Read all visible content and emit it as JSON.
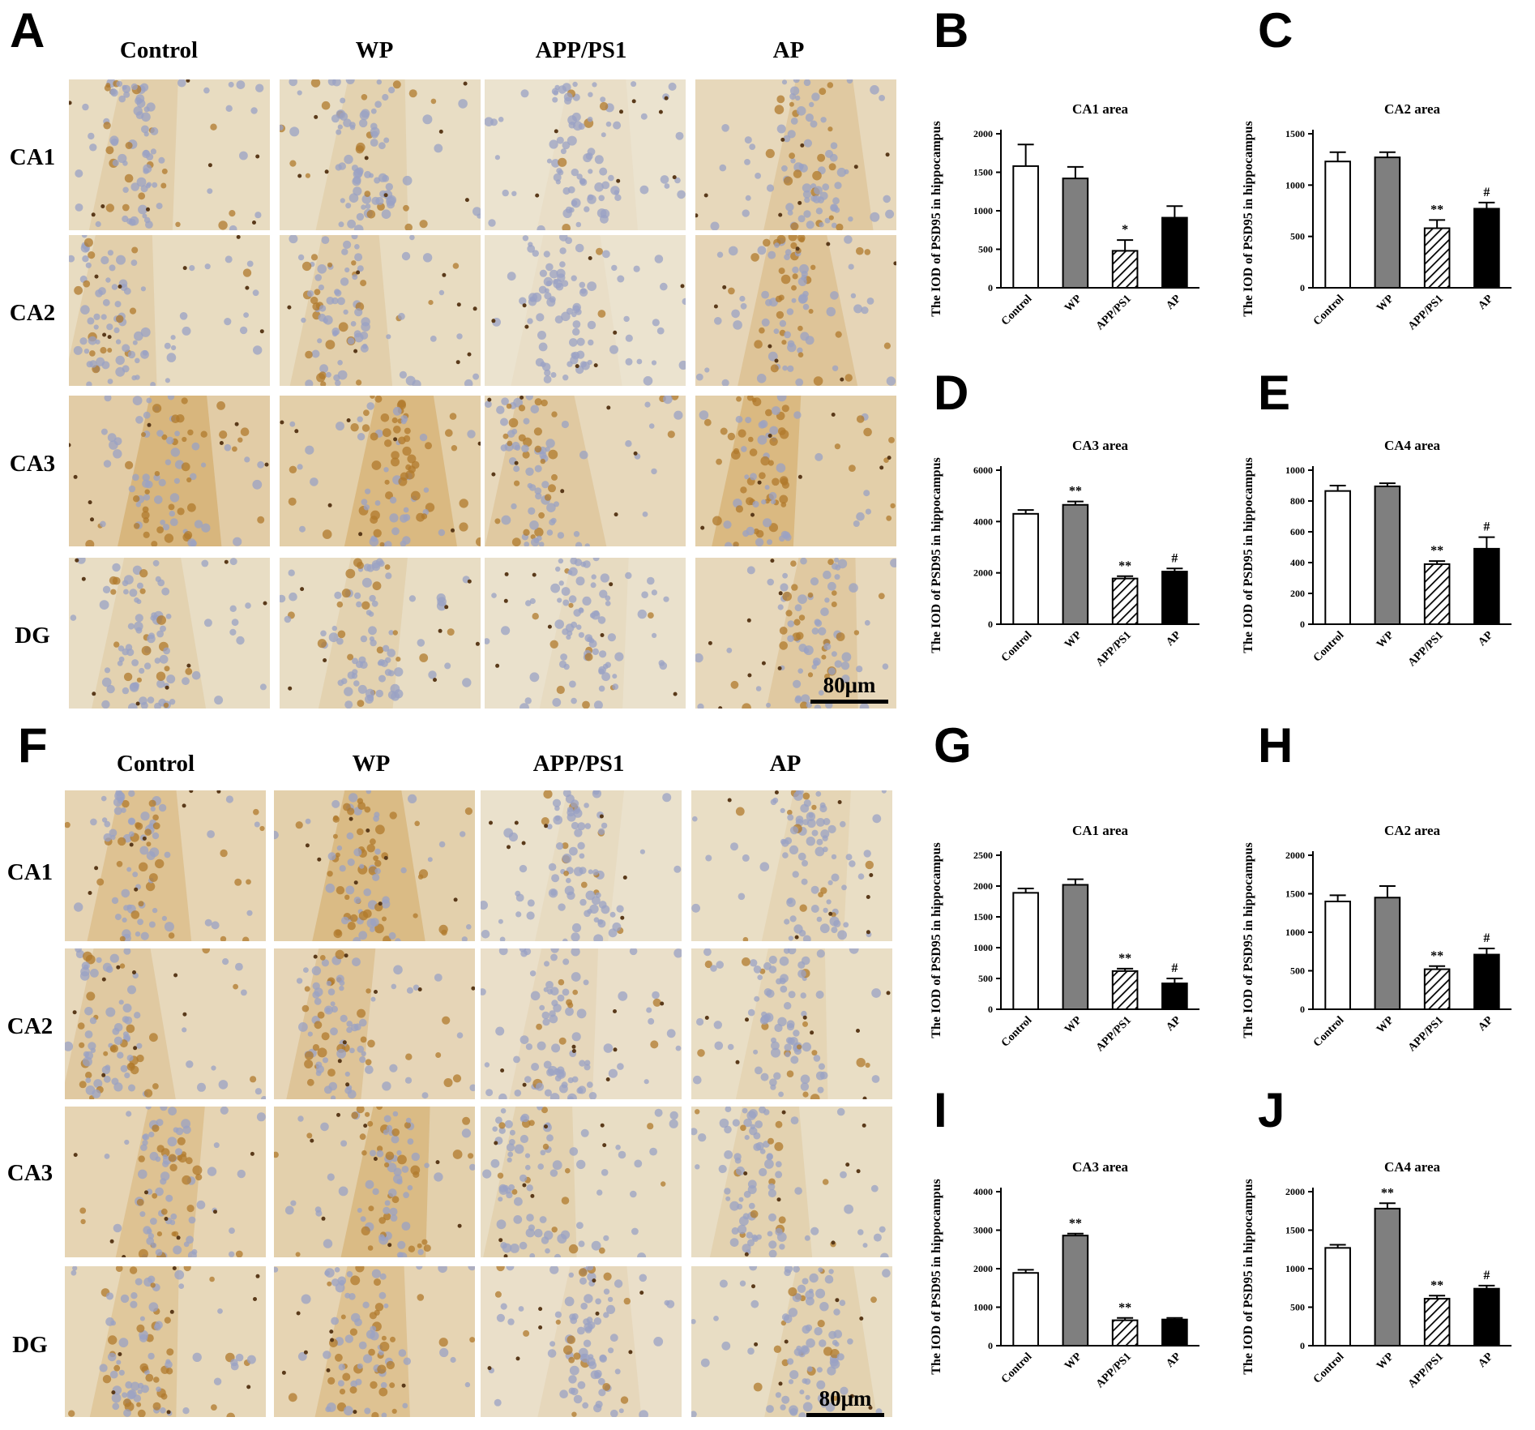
{
  "figure": {
    "panel_letters": [
      "A",
      "B",
      "C",
      "D",
      "E",
      "F",
      "G",
      "H",
      "I",
      "J"
    ],
    "micrograph_panels": [
      {
        "letter": "A",
        "columns": [
          "Control",
          "WP",
          "APP/PS1",
          "AP"
        ],
        "rows": [
          "CA1",
          "CA2",
          "CA3",
          "DG"
        ],
        "scale_bar": "80μm",
        "stain_intensity": [
          [
            0.35,
            0.3,
            0.1,
            0.45
          ],
          [
            0.35,
            0.35,
            0.1,
            0.55
          ],
          [
            0.85,
            0.8,
            0.45,
            0.8
          ],
          [
            0.3,
            0.3,
            0.15,
            0.45
          ]
        ]
      },
      {
        "letter": "F",
        "columns": [
          "Control",
          "WP",
          "APP/PS1",
          "AP"
        ],
        "rows": [
          "CA1",
          "CA2",
          "CA3",
          "DG"
        ],
        "scale_bar": "80μm",
        "stain_intensity": [
          [
            0.6,
            0.75,
            0.15,
            0.25
          ],
          [
            0.45,
            0.55,
            0.2,
            0.25
          ],
          [
            0.6,
            0.75,
            0.3,
            0.3
          ],
          [
            0.5,
            0.6,
            0.2,
            0.3
          ]
        ]
      }
    ]
  },
  "chart_data": [
    {
      "panel": "B",
      "type": "bar",
      "title": "CA1 area",
      "ylabel": "The IOD of PSD95  in hippocampus",
      "categories": [
        "Control",
        "WP",
        "APP/PS1",
        "AP"
      ],
      "values": [
        1580,
        1420,
        480,
        910
      ],
      "errors": [
        280,
        150,
        140,
        150
      ],
      "ylim": [
        0,
        2000
      ],
      "yticks": [
        0,
        500,
        1000,
        1500,
        2000
      ],
      "annotations": [
        "",
        "",
        "*",
        ""
      ]
    },
    {
      "panel": "C",
      "type": "bar",
      "title": "CA2 area",
      "ylabel": "The IOD of PSD95  in hippocampus",
      "categories": [
        "Control",
        "WP",
        "APP/PS1",
        "AP"
      ],
      "values": [
        1230,
        1270,
        580,
        770
      ],
      "errors": [
        90,
        50,
        80,
        60
      ],
      "ylim": [
        0,
        1500
      ],
      "yticks": [
        0,
        500,
        1000,
        1500
      ],
      "annotations": [
        "",
        "",
        "**",
        "#"
      ]
    },
    {
      "panel": "D",
      "type": "bar",
      "title": "CA3 area",
      "ylabel": "The IOD of PSD95 in hippocampus",
      "categories": [
        "Control",
        "WP",
        "APP/PS1",
        "AP"
      ],
      "values": [
        4300,
        4650,
        1780,
        2050
      ],
      "errors": [
        150,
        130,
        90,
        120
      ],
      "ylim": [
        0,
        6000
      ],
      "yticks": [
        0,
        2000,
        4000,
        6000
      ],
      "annotations": [
        "",
        "**",
        "**",
        "#"
      ]
    },
    {
      "panel": "E",
      "type": "bar",
      "title": "CA4 area",
      "ylabel": "The IOD of PSD95 in hippocampus",
      "categories": [
        "Control",
        "WP",
        "APP/PS1",
        "AP"
      ],
      "values": [
        865,
        895,
        390,
        490
      ],
      "errors": [
        35,
        20,
        20,
        75
      ],
      "ylim": [
        0,
        1000
      ],
      "yticks": [
        0,
        200,
        400,
        600,
        800,
        1000
      ],
      "annotations": [
        "",
        "",
        "**",
        "#"
      ]
    },
    {
      "panel": "G",
      "type": "bar",
      "title": "CA1 area",
      "ylabel": "The IOD of PSD95  in hippocampus",
      "categories": [
        "Control",
        "WP",
        "APP/PS1",
        "AP"
      ],
      "values": [
        1890,
        2020,
        620,
        420
      ],
      "errors": [
        70,
        90,
        40,
        80
      ],
      "ylim": [
        0,
        2500
      ],
      "yticks": [
        0,
        500,
        1000,
        1500,
        2000,
        2500
      ],
      "annotations": [
        "",
        "",
        "**",
        "#"
      ]
    },
    {
      "panel": "H",
      "type": "bar",
      "title": "CA2 area",
      "ylabel": "The IOD of PSD95  in hippocampus",
      "categories": [
        "Control",
        "WP",
        "APP/PS1",
        "AP"
      ],
      "values": [
        1400,
        1450,
        520,
        710
      ],
      "errors": [
        80,
        150,
        40,
        80
      ],
      "ylim": [
        0,
        2000
      ],
      "yticks": [
        0,
        500,
        1000,
        1500,
        2000
      ],
      "annotations": [
        "",
        "",
        "**",
        "#"
      ]
    },
    {
      "panel": "I",
      "type": "bar",
      "title": "CA3 area",
      "ylabel": "The IOD of PSD95 in hippocampus",
      "categories": [
        "Control",
        "WP",
        "APP/PS1",
        "AP"
      ],
      "values": [
        1890,
        2860,
        660,
        680
      ],
      "errors": [
        80,
        50,
        60,
        40
      ],
      "ylim": [
        0,
        4000
      ],
      "yticks": [
        0,
        1000,
        2000,
        3000,
        4000
      ],
      "annotations": [
        "",
        "**",
        "**",
        ""
      ]
    },
    {
      "panel": "J",
      "type": "bar",
      "title": "CA4 area",
      "ylabel": "The IOD of PSD95 in hippocampus",
      "categories": [
        "Control",
        "WP",
        "APP/PS1",
        "AP"
      ],
      "values": [
        1270,
        1780,
        610,
        740
      ],
      "errors": [
        40,
        70,
        40,
        40
      ],
      "ylim": [
        0,
        2000
      ],
      "yticks": [
        0,
        500,
        1000,
        1500,
        2000
      ],
      "annotations": [
        "",
        "**",
        "**",
        "#"
      ]
    }
  ],
  "bar_styles": {
    "Control": {
      "fill": "#ffffff"
    },
    "WP": {
      "fill": "#7f7f7f"
    },
    "APP/PS1": {
      "fill": "hatch"
    },
    "AP": {
      "fill": "#000000"
    }
  },
  "colors": {
    "stain_light": "#ede6d4",
    "stain_brown": "#c9923a",
    "nuclei": "#9aa2c4"
  }
}
